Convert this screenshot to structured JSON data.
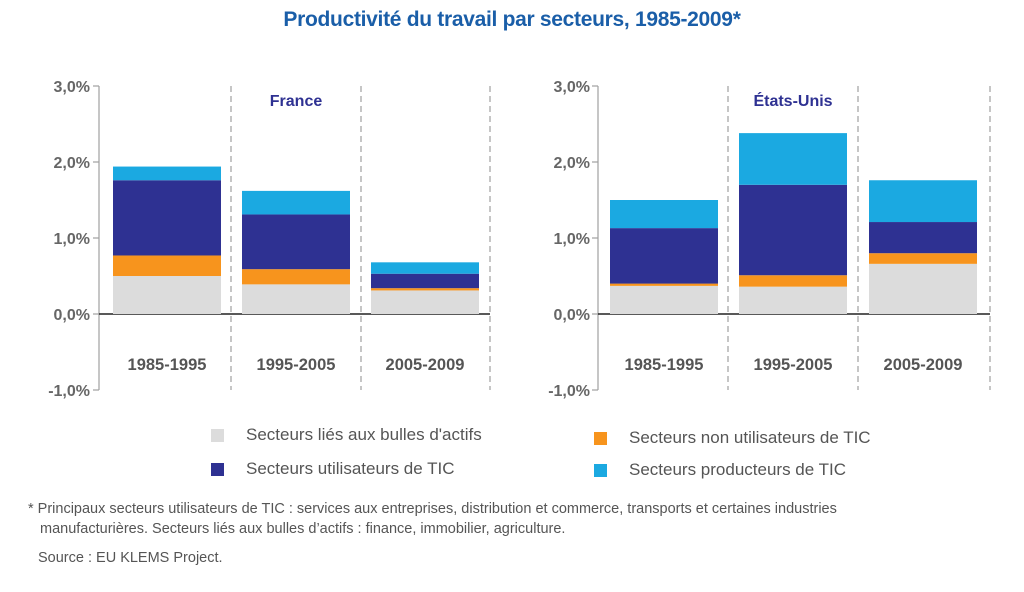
{
  "title": "Productivité du travail par secteurs, 1985-2009*",
  "legend": [
    {
      "label": "Secteurs liés aux bulles d'actifs",
      "color": "#dcdcdc"
    },
    {
      "label": "Secteurs non utilisateurs de TIC",
      "color": "#f7941d"
    },
    {
      "label": "Secteurs utilisateurs de TIC",
      "color": "#2e3192"
    },
    {
      "label": "Secteurs producteurs de TIC",
      "color": "#1ba9e1"
    }
  ],
  "footnote_line1": "* Principaux secteurs utilisateurs de TIC : services aux entreprises, distribution et commerce, transports et certaines industries",
  "footnote_line2": "manufacturières. Secteurs liés aux bulles d’actifs : finance, immobilier, agriculture.",
  "source": "Source : EU KLEMS Project.",
  "chart_data": [
    {
      "type": "bar",
      "stacked": true,
      "title": "France",
      "categories": [
        "1985-1995",
        "1995-2005",
        "2005-2009"
      ],
      "ylim": [
        -1,
        3
      ],
      "yticks": [
        "3,0%",
        "2,0%",
        "1,0%",
        "0,0%",
        "-1,0%"
      ],
      "ytick_values": [
        3,
        2,
        1,
        0,
        -1
      ],
      "series": [
        {
          "name": "Secteurs liés aux bulles d'actifs",
          "color": "#dcdcdc",
          "values": [
            0.5,
            0.39,
            0.31
          ]
        },
        {
          "name": "Secteurs non utilisateurs de TIC",
          "color": "#f7941d",
          "values": [
            0.27,
            0.2,
            0.03
          ]
        },
        {
          "name": "Secteurs utilisateurs de TIC",
          "color": "#2e3192",
          "values": [
            0.99,
            0.72,
            0.19
          ]
        },
        {
          "name": "Secteurs producteurs de TIC",
          "color": "#1ba9e1",
          "values": [
            0.18,
            0.31,
            0.15
          ]
        }
      ]
    },
    {
      "type": "bar",
      "stacked": true,
      "title": "États-Unis",
      "categories": [
        "1985-1995",
        "1995-2005",
        "2005-2009"
      ],
      "ylim": [
        -1,
        3
      ],
      "yticks": [
        "3,0%",
        "2,0%",
        "1,0%",
        "0,0%",
        "-1,0%"
      ],
      "ytick_values": [
        3,
        2,
        1,
        0,
        -1
      ],
      "series": [
        {
          "name": "Secteurs liés aux bulles d'actifs",
          "color": "#dcdcdc",
          "values": [
            0.37,
            0.36,
            0.66
          ]
        },
        {
          "name": "Secteurs non utilisateurs de TIC",
          "color": "#f7941d",
          "values": [
            0.03,
            0.15,
            0.14
          ]
        },
        {
          "name": "Secteurs utilisateurs de TIC",
          "color": "#2e3192",
          "values": [
            0.73,
            1.19,
            0.41
          ]
        },
        {
          "name": "Secteurs producteurs de TIC",
          "color": "#1ba9e1",
          "values": [
            0.37,
            0.68,
            0.55
          ]
        }
      ]
    }
  ]
}
